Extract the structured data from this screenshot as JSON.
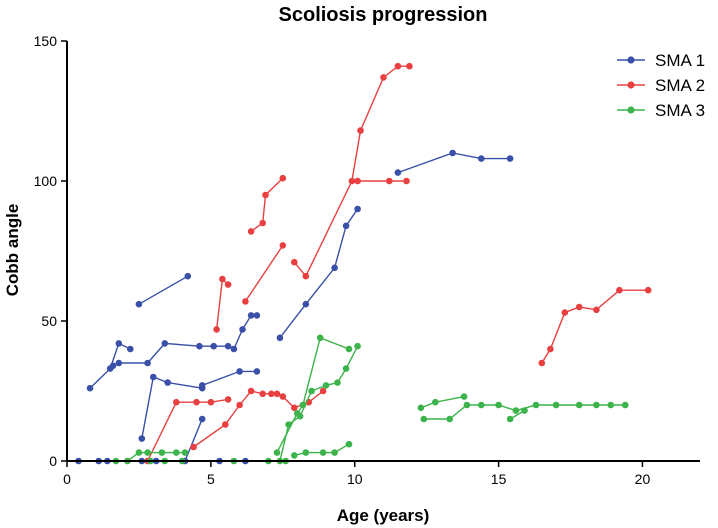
{
  "chart_data": {
    "type": "line",
    "title": "Scoliosis progression",
    "xlabel": "Age (years)",
    "ylabel": "Cobb angle",
    "xlim": [
      0,
      22
    ],
    "ylim": [
      0,
      150
    ],
    "xticks": [
      0,
      5,
      10,
      15,
      20
    ],
    "yticks": [
      0,
      50,
      100,
      150
    ],
    "grid": false,
    "legend_position": "top-right",
    "series": [
      {
        "name": "SMA 1",
        "color": "#3a50a8",
        "lines": [
          [
            [
              0.8,
              26
            ],
            [
              1.5,
              33
            ],
            [
              1.8,
              42
            ],
            [
              2.2,
              40
            ]
          ],
          [
            [
              1.6,
              34
            ],
            [
              1.8,
              35
            ],
            [
              2.8,
              35
            ],
            [
              3.4,
              42
            ],
            [
              4.6,
              41
            ],
            [
              5.1,
              41
            ],
            [
              5.6,
              41
            ],
            [
              5.8,
              40
            ],
            [
              6.1,
              47
            ],
            [
              6.4,
              52
            ],
            [
              6.6,
              52
            ]
          ],
          [
            [
              2.6,
              8
            ],
            [
              3.0,
              30
            ],
            [
              3.5,
              28
            ],
            [
              4.7,
              26
            ],
            [
              4.7,
              27
            ],
            [
              6.0,
              32
            ],
            [
              6.6,
              32
            ]
          ],
          [
            [
              2.5,
              56
            ],
            [
              4.2,
              66
            ]
          ],
          [
            [
              0.4,
              0
            ],
            [
              1.1,
              0
            ],
            [
              1.4,
              0
            ],
            [
              2.6,
              0
            ],
            [
              3.1,
              0
            ],
            [
              4.1,
              0
            ],
            [
              4.7,
              15
            ]
          ],
          [
            [
              5.3,
              0
            ],
            [
              6.2,
              0
            ]
          ],
          [
            [
              7.4,
              44
            ],
            [
              8.3,
              56
            ],
            [
              9.3,
              69
            ],
            [
              9.7,
              84
            ],
            [
              10.1,
              90
            ]
          ],
          [
            [
              11.5,
              103
            ],
            [
              13.4,
              110
            ],
            [
              14.4,
              108
            ],
            [
              15.4,
              108
            ]
          ]
        ]
      },
      {
        "name": "SMA 2",
        "color": "#e84040",
        "lines": [
          [
            [
              4.4,
              5
            ],
            [
              5.5,
              13
            ],
            [
              6.0,
              20
            ],
            [
              6.4,
              25
            ],
            [
              6.8,
              24
            ],
            [
              7.1,
              24
            ],
            [
              7.3,
              24
            ],
            [
              7.5,
              23
            ],
            [
              7.9,
              19
            ],
            [
              8.4,
              21
            ],
            [
              8.9,
              25
            ]
          ],
          [
            [
              2.8,
              0
            ],
            [
              3.8,
              21
            ],
            [
              4.5,
              21
            ],
            [
              5.0,
              21
            ],
            [
              5.6,
              22
            ]
          ],
          [
            [
              5.2,
              47
            ],
            [
              5.4,
              65
            ],
            [
              5.6,
              63
            ]
          ],
          [
            [
              6.2,
              57
            ],
            [
              7.5,
              77
            ]
          ],
          [
            [
              6.4,
              82
            ],
            [
              6.8,
              85
            ],
            [
              6.9,
              95
            ],
            [
              7.5,
              101
            ]
          ],
          [
            [
              7.9,
              71
            ],
            [
              8.3,
              66
            ],
            [
              9.9,
              100
            ],
            [
              10.2,
              118
            ],
            [
              11.0,
              137
            ],
            [
              11.5,
              141
            ],
            [
              11.9,
              141
            ]
          ],
          [
            [
              10.1,
              100
            ],
            [
              11.2,
              100
            ],
            [
              11.8,
              100
            ]
          ],
          [
            [
              16.5,
              35
            ],
            [
              16.8,
              40
            ],
            [
              17.3,
              53
            ],
            [
              17.8,
              55
            ],
            [
              18.4,
              54
            ],
            [
              19.2,
              61
            ],
            [
              20.2,
              61
            ]
          ]
        ]
      },
      {
        "name": "SMA 3",
        "color": "#3cb44b",
        "lines": [
          [
            [
              1.7,
              0
            ],
            [
              2.1,
              0
            ],
            [
              2.5,
              3
            ],
            [
              2.8,
              3
            ],
            [
              3.3,
              3
            ],
            [
              3.8,
              3
            ],
            [
              4.1,
              3
            ]
          ],
          [
            [
              2.9,
              0
            ],
            [
              3.4,
              0
            ],
            [
              4.0,
              0
            ]
          ],
          [
            [
              7.3,
              3
            ],
            [
              8.0,
              17
            ],
            [
              8.2,
              20
            ],
            [
              8.8,
              44
            ],
            [
              9.8,
              40
            ]
          ],
          [
            [
              7.4,
              0
            ],
            [
              7.7,
              13
            ],
            [
              8.1,
              16
            ],
            [
              8.5,
              25
            ],
            [
              9.0,
              27
            ],
            [
              9.4,
              28
            ],
            [
              9.7,
              33
            ],
            [
              10.1,
              41
            ]
          ],
          [
            [
              5.8,
              0
            ],
            [
              7.0,
              0
            ],
            [
              7.6,
              0
            ]
          ],
          [
            [
              7.9,
              2
            ],
            [
              8.3,
              3
            ],
            [
              8.9,
              3
            ],
            [
              9.3,
              3
            ],
            [
              9.8,
              6
            ]
          ],
          [
            [
              12.3,
              19
            ],
            [
              12.8,
              21
            ],
            [
              13.8,
              23
            ]
          ],
          [
            [
              12.4,
              15
            ],
            [
              13.3,
              15
            ],
            [
              13.9,
              20
            ],
            [
              14.4,
              20
            ],
            [
              15.0,
              20
            ],
            [
              15.6,
              18
            ],
            [
              16.3,
              20
            ],
            [
              17.0,
              20
            ],
            [
              17.8,
              20
            ],
            [
              18.4,
              20
            ],
            [
              18.9,
              20
            ],
            [
              19.4,
              20
            ]
          ],
          [
            [
              15.4,
              15
            ],
            [
              15.9,
              18
            ]
          ]
        ]
      }
    ]
  }
}
